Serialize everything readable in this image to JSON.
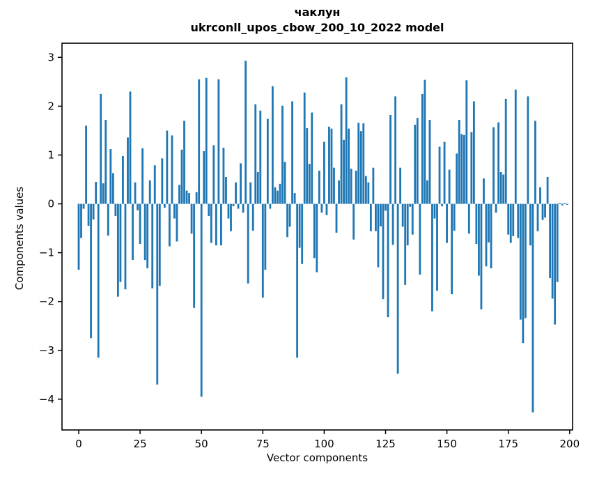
{
  "figure": {
    "title_line1": "чаклун",
    "title_line2": "ukrconll_upos_cbow_200_10_2022 model",
    "xlabel": "Vector components",
    "ylabel": "Components values",
    "bar_color": "#1f77b4",
    "axis_color": "#000000",
    "background": "#ffffff"
  },
  "chart_data": {
    "type": "bar",
    "title": "чаклун",
    "subtitle": "ukrconll_upos_cbow_200_10_2022 model",
    "xlabel": "Vector components",
    "ylabel": "Components values",
    "x_ticks": [
      0,
      25,
      50,
      75,
      100,
      125,
      150,
      175,
      200
    ],
    "y_ticks": [
      3,
      2,
      1,
      0,
      -1,
      -2,
      -3,
      -4
    ],
    "xlim": [
      -6.81,
      201.19
    ],
    "ylim": [
      -4.63,
      3.29
    ],
    "bar_width": 0.8,
    "grid": false,
    "legend": "none",
    "n_components": 200,
    "values": [
      -1.35,
      -0.7,
      -0.1,
      1.6,
      -0.45,
      -2.75,
      -0.32,
      0.45,
      -3.15,
      2.25,
      0.42,
      1.72,
      -0.65,
      1.12,
      0.63,
      -0.25,
      -1.9,
      -1.6,
      0.98,
      -1.75,
      1.36,
      2.3,
      -1.15,
      0.44,
      -0.13,
      -0.82,
      1.14,
      -1.15,
      -1.32,
      0.48,
      -1.73,
      0.79,
      -3.7,
      -1.68,
      0.93,
      -0.08,
      1.5,
      -0.87,
      1.4,
      -0.3,
      -0.77,
      0.39,
      1.11,
      1.7,
      0.27,
      0.22,
      -0.61,
      -2.13,
      0.24,
      2.55,
      -3.95,
      1.08,
      2.58,
      -0.25,
      -0.8,
      1.2,
      -0.85,
      2.55,
      -0.85,
      1.15,
      0.55,
      -0.3,
      -0.56,
      -0.05,
      0.44,
      -0.1,
      0.83,
      -0.18,
      2.93,
      -1.63,
      0.44,
      -0.55,
      2.04,
      0.65,
      1.91,
      -1.92,
      -1.35,
      1.74,
      -0.1,
      2.41,
      0.34,
      0.27,
      0.41,
      2.01,
      0.86,
      -0.68,
      -0.47,
      2.1,
      0.22,
      -3.15,
      -0.9,
      -1.23,
      2.28,
      1.55,
      0.82,
      1.87,
      -1.11,
      -1.4,
      0.68,
      -0.18,
      1.27,
      -0.23,
      1.58,
      1.54,
      0.74,
      -0.59,
      0.48,
      2.04,
      1.31,
      2.59,
      1.54,
      0.72,
      -0.73,
      0.68,
      1.66,
      1.49,
      1.65,
      0.57,
      0.44,
      -0.56,
      0.74,
      -0.56,
      -1.3,
      -0.46,
      -1.95,
      -0.14,
      -2.32,
      1.82,
      -0.84,
      2.2,
      -3.48,
      0.74,
      -0.47,
      -1.66,
      -0.85,
      -0.06,
      -0.63,
      1.62,
      1.76,
      -1.45,
      2.25,
      2.54,
      0.48,
      1.72,
      -2.2,
      -0.3,
      -1.78,
      1.17,
      -0.05,
      1.27,
      -0.8,
      0.7,
      -1.85,
      -0.55,
      1.03,
      1.72,
      1.43,
      1.41,
      2.53,
      -0.61,
      1.47,
      2.1,
      -0.82,
      -1.47,
      -2.16,
      0.52,
      -1.28,
      -0.79,
      -1.32,
      1.57,
      -0.18,
      1.67,
      0.65,
      0.6,
      2.15,
      -0.63,
      -0.8,
      -0.66,
      2.34,
      -0.7,
      -2.37,
      -2.85,
      -2.34,
      2.2,
      -0.85,
      -4.27,
      1.7,
      -0.56,
      0.34,
      -0.33,
      -0.28,
      0.55,
      -1.52,
      -1.94,
      -2.47,
      -1.6,
      0.02,
      -0.03,
      0.02,
      -0.02
    ]
  },
  "layout_note": "matplotlib-style figure"
}
